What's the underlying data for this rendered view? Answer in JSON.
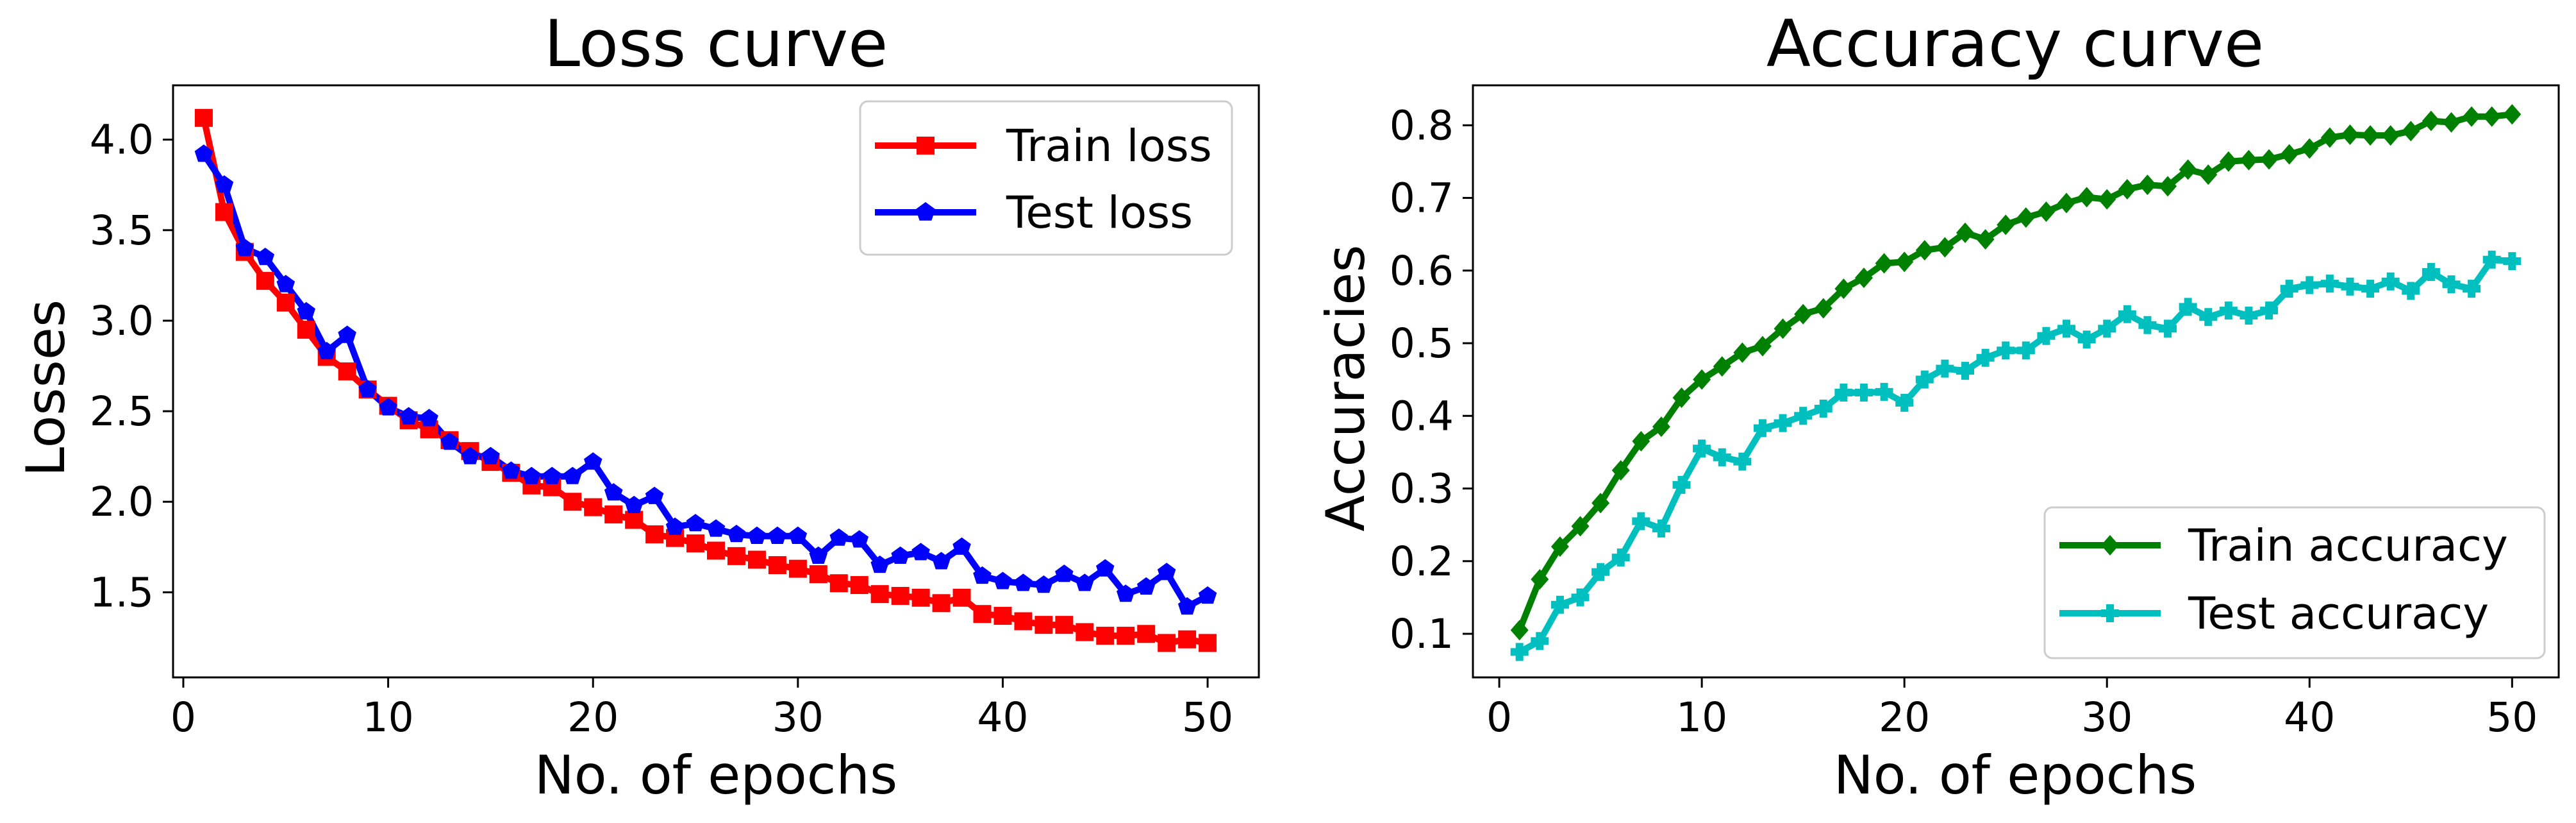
{
  "chart_data": [
    {
      "type": "line",
      "title": "Loss curve",
      "xlabel": "No. of epochs",
      "ylabel": "Losses",
      "xlim": [
        -0.5,
        52.5
      ],
      "ylim": [
        1.03,
        4.3
      ],
      "xticks": [
        0,
        10,
        20,
        30,
        40,
        50
      ],
      "yticks": [
        1.5,
        2.0,
        2.5,
        3.0,
        3.5,
        4.0
      ],
      "xtick_labels": [
        "0",
        "10",
        "20",
        "30",
        "40",
        "50"
      ],
      "ytick_labels": [
        "1.5",
        "2.0",
        "2.5",
        "3.0",
        "3.5",
        "4.0"
      ],
      "grid": false,
      "legend_position": "top-right",
      "x": [
        1,
        2,
        3,
        4,
        5,
        6,
        7,
        8,
        9,
        10,
        11,
        12,
        13,
        14,
        15,
        16,
        17,
        18,
        19,
        20,
        21,
        22,
        23,
        24,
        25,
        26,
        27,
        28,
        29,
        30,
        31,
        32,
        33,
        34,
        35,
        36,
        37,
        38,
        39,
        40,
        41,
        42,
        43,
        44,
        45,
        46,
        47,
        48,
        49,
        50
      ],
      "series": [
        {
          "name": "Train loss",
          "color": "#ff0000",
          "marker": "square",
          "values": [
            4.12,
            3.6,
            3.38,
            3.22,
            3.1,
            2.95,
            2.8,
            2.72,
            2.62,
            2.53,
            2.45,
            2.4,
            2.34,
            2.28,
            2.22,
            2.16,
            2.09,
            2.08,
            2.0,
            1.97,
            1.93,
            1.9,
            1.82,
            1.8,
            1.77,
            1.73,
            1.7,
            1.68,
            1.65,
            1.63,
            1.6,
            1.55,
            1.54,
            1.49,
            1.48,
            1.47,
            1.44,
            1.47,
            1.38,
            1.37,
            1.34,
            1.32,
            1.32,
            1.28,
            1.26,
            1.26,
            1.27,
            1.22,
            1.24,
            1.22
          ]
        },
        {
          "name": "Test loss",
          "color": "#0000ff",
          "marker": "pentagon",
          "values": [
            3.92,
            3.75,
            3.4,
            3.35,
            3.2,
            3.05,
            2.83,
            2.92,
            2.62,
            2.52,
            2.47,
            2.46,
            2.33,
            2.25,
            2.25,
            2.17,
            2.14,
            2.14,
            2.14,
            2.22,
            2.05,
            1.98,
            2.03,
            1.86,
            1.88,
            1.85,
            1.82,
            1.81,
            1.81,
            1.81,
            1.7,
            1.8,
            1.79,
            1.65,
            1.7,
            1.72,
            1.67,
            1.75,
            1.59,
            1.56,
            1.55,
            1.54,
            1.6,
            1.55,
            1.63,
            1.49,
            1.53,
            1.61,
            1.42,
            1.48
          ]
        }
      ]
    },
    {
      "type": "line",
      "title": "Accuracy curve",
      "xlabel": "No. of epochs",
      "ylabel": "Accuracies",
      "xlim": [
        -1.3,
        52.3
      ],
      "ylim": [
        0.04,
        0.855
      ],
      "xticks": [
        0,
        10,
        20,
        30,
        40,
        50
      ],
      "yticks": [
        0.1,
        0.2,
        0.3,
        0.4,
        0.5,
        0.6,
        0.7,
        0.8
      ],
      "xtick_labels": [
        "0",
        "10",
        "20",
        "30",
        "40",
        "50"
      ],
      "ytick_labels": [
        "0.1",
        "0.2",
        "0.3",
        "0.4",
        "0.5",
        "0.6",
        "0.7",
        "0.8"
      ],
      "grid": false,
      "legend_position": "bottom-right",
      "x": [
        1,
        2,
        3,
        4,
        5,
        6,
        7,
        8,
        9,
        10,
        11,
        12,
        13,
        14,
        15,
        16,
        17,
        18,
        19,
        20,
        21,
        22,
        23,
        24,
        25,
        26,
        27,
        28,
        29,
        30,
        31,
        32,
        33,
        34,
        35,
        36,
        37,
        38,
        39,
        40,
        41,
        42,
        43,
        44,
        45,
        46,
        47,
        48,
        49,
        50
      ],
      "series": [
        {
          "name": "Train accuracy",
          "color": "#008000",
          "marker": "diamond",
          "values": [
            0.105,
            0.175,
            0.22,
            0.248,
            0.28,
            0.325,
            0.365,
            0.385,
            0.425,
            0.45,
            0.468,
            0.487,
            0.496,
            0.52,
            0.54,
            0.548,
            0.575,
            0.59,
            0.61,
            0.612,
            0.628,
            0.632,
            0.652,
            0.643,
            0.663,
            0.673,
            0.681,
            0.693,
            0.701,
            0.698,
            0.712,
            0.718,
            0.716,
            0.739,
            0.732,
            0.75,
            0.752,
            0.753,
            0.76,
            0.768,
            0.783,
            0.787,
            0.786,
            0.786,
            0.792,
            0.806,
            0.804,
            0.812,
            0.812,
            0.815
          ]
        },
        {
          "name": "Test accuracy",
          "color": "#00bfbf",
          "marker": "plus",
          "values": [
            0.075,
            0.09,
            0.14,
            0.15,
            0.185,
            0.205,
            0.255,
            0.245,
            0.305,
            0.355,
            0.343,
            0.337,
            0.383,
            0.39,
            0.4,
            0.41,
            0.432,
            0.432,
            0.433,
            0.418,
            0.45,
            0.465,
            0.462,
            0.48,
            0.49,
            0.49,
            0.51,
            0.52,
            0.505,
            0.52,
            0.54,
            0.525,
            0.52,
            0.55,
            0.536,
            0.545,
            0.538,
            0.545,
            0.575,
            0.58,
            0.582,
            0.578,
            0.575,
            0.585,
            0.572,
            0.598,
            0.581,
            0.575,
            0.615,
            0.613
          ]
        }
      ]
    }
  ]
}
